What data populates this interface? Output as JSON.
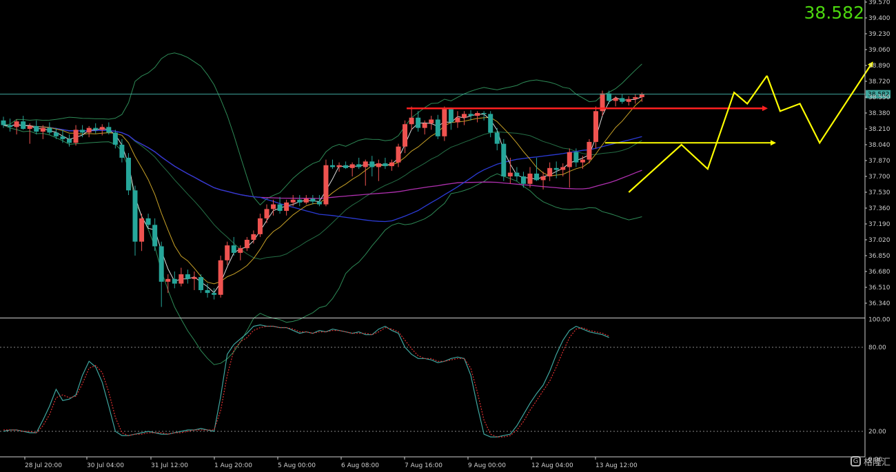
{
  "current_price": "38.582",
  "watermark": {
    "icon": "g-logo",
    "text": "格隆汇"
  },
  "colors": {
    "bull": "#ef5350",
    "bear": "#26a69a",
    "ma_white": "#dddddd",
    "ma_yellow": "#c9a227",
    "ma_blue": "#2b3bd6",
    "ma_purple": "#b030b0",
    "bb": "#2e8b57",
    "resistance": "#ff2020",
    "annotation": "#ffff00",
    "price_line": "#3fa79e",
    "stoch_k": "#3fa7a0",
    "stoch_d": "#e03030"
  },
  "chart_data": [
    {
      "type": "candlestick",
      "y_tick_labels": [
        "39.570",
        "39.400",
        "39.230",
        "39.060",
        "38.890",
        "38.720",
        "38.550",
        "38.380",
        "38.210",
        "38.040",
        "37.870",
        "37.700",
        "37.530",
        "37.360",
        "37.190",
        "37.020",
        "36.850",
        "36.680",
        "36.510",
        "36.340"
      ],
      "ylim": [
        36.2,
        39.6
      ],
      "x_tick_labels": [
        "28 Jul 20:00",
        "30 Jul 04:00",
        "31 Jul 12:00",
        "1 Aug 20:00",
        "5 Aug 00:00",
        "6 Aug 08:00",
        "7 Aug 16:00",
        "9 Aug 00:00",
        "12 Aug 04:00",
        "13 Aug 12:00"
      ],
      "current_price": 38.582,
      "resistance_level": 38.43,
      "support_level": 38.06,
      "candles": [
        [
          38.3,
          38.34,
          38.22,
          38.25
        ],
        [
          38.25,
          38.32,
          38.18,
          38.23
        ],
        [
          38.23,
          38.31,
          38.15,
          38.29
        ],
        [
          38.29,
          38.35,
          38.2,
          38.21
        ],
        [
          38.21,
          38.27,
          38.05,
          38.24
        ],
        [
          38.24,
          38.3,
          38.15,
          38.18
        ],
        [
          38.18,
          38.25,
          38.1,
          38.22
        ],
        [
          38.22,
          38.28,
          38.15,
          38.17
        ],
        [
          38.17,
          38.22,
          38.1,
          38.13
        ],
        [
          38.13,
          38.2,
          38.06,
          38.1
        ],
        [
          38.1,
          38.15,
          38.02,
          38.06
        ],
        [
          38.06,
          38.25,
          38.03,
          38.2
        ],
        [
          38.2,
          38.25,
          38.12,
          38.17
        ],
        [
          38.17,
          38.24,
          38.12,
          38.22
        ],
        [
          38.22,
          38.27,
          38.16,
          38.2
        ],
        [
          38.2,
          38.26,
          38.14,
          38.23
        ],
        [
          38.23,
          38.28,
          38.15,
          38.17
        ],
        [
          38.17,
          38.2,
          38.0,
          38.04
        ],
        [
          38.04,
          38.1,
          37.85,
          37.9
        ],
        [
          37.9,
          37.95,
          37.5,
          37.55
        ],
        [
          37.55,
          37.6,
          36.85,
          37.0
        ],
        [
          37.0,
          37.3,
          36.9,
          37.25
        ],
        [
          37.25,
          37.3,
          37.15,
          37.18
        ],
        [
          37.18,
          37.25,
          36.9,
          36.95
        ],
        [
          36.95,
          37.0,
          36.3,
          36.57
        ],
        [
          36.57,
          36.65,
          36.45,
          36.6
        ],
        [
          36.6,
          36.68,
          36.5,
          36.55
        ],
        [
          36.55,
          36.72,
          36.52,
          36.65
        ],
        [
          36.65,
          36.7,
          36.55,
          36.6
        ],
        [
          36.6,
          36.68,
          36.48,
          36.62
        ],
        [
          36.62,
          36.65,
          36.45,
          36.48
        ],
        [
          36.48,
          36.55,
          36.4,
          36.45
        ],
        [
          36.45,
          36.5,
          36.38,
          36.43
        ],
        [
          36.43,
          36.85,
          36.4,
          36.8
        ],
        [
          36.8,
          37.0,
          36.75,
          36.96
        ],
        [
          36.96,
          37.05,
          36.85,
          36.88
        ],
        [
          36.88,
          36.96,
          36.8,
          36.93
        ],
        [
          36.93,
          37.05,
          36.9,
          37.02
        ],
        [
          37.02,
          37.12,
          36.98,
          37.08
        ],
        [
          37.08,
          37.3,
          37.05,
          37.25
        ],
        [
          37.25,
          37.4,
          37.2,
          37.35
        ],
        [
          37.35,
          37.45,
          37.28,
          37.4
        ],
        [
          37.4,
          37.48,
          37.3,
          37.33
        ],
        [
          37.33,
          37.45,
          37.28,
          37.42
        ],
        [
          37.42,
          37.5,
          37.38,
          37.45
        ],
        [
          37.45,
          37.5,
          37.38,
          37.42
        ],
        [
          37.42,
          37.5,
          37.4,
          37.46
        ],
        [
          37.46,
          37.5,
          37.4,
          37.43
        ],
        [
          37.43,
          37.5,
          37.38,
          37.4
        ],
        [
          37.4,
          37.88,
          37.38,
          37.82
        ],
        [
          37.82,
          37.88,
          37.78,
          37.8
        ],
        [
          37.8,
          37.85,
          37.75,
          37.82
        ],
        [
          37.82,
          37.86,
          37.78,
          37.79
        ],
        [
          37.79,
          37.85,
          37.7,
          37.83
        ],
        [
          37.83,
          37.9,
          37.78,
          37.8
        ],
        [
          37.8,
          37.88,
          37.6,
          37.86
        ],
        [
          37.86,
          37.92,
          37.7,
          37.8
        ],
        [
          37.8,
          37.88,
          37.65,
          37.84
        ],
        [
          37.84,
          37.9,
          37.78,
          37.81
        ],
        [
          37.81,
          37.88,
          37.76,
          37.85
        ],
        [
          37.85,
          38.05,
          37.8,
          38.02
        ],
        [
          38.02,
          38.3,
          37.95,
          38.26
        ],
        [
          38.26,
          38.45,
          38.2,
          38.33
        ],
        [
          38.33,
          38.4,
          38.18,
          38.22
        ],
        [
          38.22,
          38.3,
          38.15,
          38.27
        ],
        [
          38.27,
          38.35,
          38.2,
          38.31
        ],
        [
          38.31,
          38.36,
          38.1,
          38.13
        ],
        [
          38.13,
          38.45,
          38.08,
          38.42
        ],
        [
          38.42,
          38.44,
          38.2,
          38.28
        ],
        [
          38.28,
          38.4,
          38.22,
          38.33
        ],
        [
          38.33,
          38.4,
          38.25,
          38.37
        ],
        [
          38.37,
          38.41,
          38.3,
          38.35
        ],
        [
          38.35,
          38.4,
          38.28,
          38.38
        ],
        [
          38.38,
          38.4,
          38.3,
          38.37
        ],
        [
          38.37,
          38.4,
          38.12,
          38.17
        ],
        [
          38.17,
          38.22,
          37.98,
          38.05
        ],
        [
          38.05,
          38.1,
          37.65,
          37.7
        ],
        [
          37.7,
          37.9,
          37.62,
          37.74
        ],
        [
          37.74,
          37.8,
          37.65,
          37.7
        ],
        [
          37.7,
          37.75,
          37.58,
          37.62
        ],
        [
          37.62,
          37.8,
          37.58,
          37.73
        ],
        [
          37.73,
          37.9,
          37.65,
          37.66
        ],
        [
          37.66,
          37.75,
          37.56,
          37.7
        ],
        [
          37.7,
          37.85,
          37.65,
          37.79
        ],
        [
          37.79,
          37.86,
          37.68,
          37.77
        ],
        [
          37.77,
          37.84,
          37.7,
          37.8
        ],
        [
          37.8,
          38.0,
          37.58,
          37.96
        ],
        [
          37.96,
          38.0,
          37.8,
          37.85
        ],
        [
          37.85,
          37.92,
          37.78,
          37.88
        ],
        [
          37.88,
          38.1,
          37.84,
          38.07
        ],
        [
          38.07,
          38.45,
          38.0,
          38.4
        ],
        [
          38.4,
          38.62,
          38.35,
          38.59
        ],
        [
          38.59,
          38.62,
          38.48,
          38.51
        ],
        [
          38.51,
          38.56,
          38.45,
          38.54
        ],
        [
          38.54,
          38.58,
          38.48,
          38.5
        ],
        [
          38.5,
          38.56,
          38.46,
          38.53
        ],
        [
          38.53,
          38.58,
          38.48,
          38.55
        ],
        [
          38.55,
          38.6,
          38.5,
          38.58
        ]
      ],
      "annotations": {
        "current_price_tag": "38.582",
        "zigzag_up": [
          [
            95,
            37.53
          ],
          [
            103,
            38.04
          ],
          [
            107,
            37.78
          ],
          [
            111,
            38.6
          ],
          [
            113,
            38.48
          ],
          [
            116,
            38.78
          ]
        ],
        "zigzag_forecast": [
          [
            116,
            38.78
          ],
          [
            118,
            38.4
          ],
          [
            121,
            38.48
          ],
          [
            124,
            38.06
          ],
          [
            132,
            38.92
          ]
        ]
      }
    },
    {
      "type": "line",
      "title": "",
      "y_tick_labels": [
        "100.00",
        "80.00",
        "20.00",
        "0.00"
      ],
      "ylim": [
        0,
        100
      ],
      "levels": [
        80,
        20
      ],
      "series": [
        {
          "values": [
            20,
            21,
            21,
            20,
            19,
            19,
            28,
            38,
            50,
            42,
            43,
            46,
            60,
            70,
            66,
            55,
            38,
            20,
            17,
            17,
            18,
            19,
            20,
            19,
            18,
            18,
            19,
            20,
            21,
            21,
            22,
            21,
            20,
            45,
            75,
            82,
            86,
            90,
            95,
            96,
            95,
            95,
            94,
            94,
            92,
            90,
            91,
            90,
            92,
            91,
            93,
            92,
            91,
            90,
            91,
            89,
            89,
            93,
            95,
            92,
            90,
            80,
            75,
            72,
            72,
            71,
            69,
            70,
            72,
            73,
            72,
            60,
            38,
            18,
            16,
            16,
            17,
            18,
            24,
            32,
            40,
            47,
            53,
            63,
            75,
            85,
            92,
            95,
            93,
            91,
            90,
            89,
            87
          ]
        },
        {
          "values": [
            21,
            21,
            21,
            20,
            20,
            19,
            24,
            32,
            44,
            46,
            44,
            45,
            54,
            65,
            67,
            62,
            48,
            30,
            19,
            17,
            18,
            18,
            19,
            19,
            19,
            18,
            19,
            19,
            20,
            21,
            21,
            21,
            21,
            35,
            60,
            78,
            84,
            87,
            92,
            94,
            95,
            95,
            94,
            94,
            93,
            91,
            91,
            90,
            91,
            91,
            92,
            92,
            91,
            90,
            90,
            90,
            89,
            91,
            94,
            93,
            91,
            85,
            79,
            74,
            72,
            72,
            70,
            70,
            71,
            72,
            72,
            65,
            48,
            28,
            18,
            16,
            16,
            17,
            21,
            27,
            35,
            42,
            49,
            56,
            66,
            77,
            87,
            93,
            94,
            92,
            91,
            90,
            88
          ]
        }
      ]
    }
  ]
}
